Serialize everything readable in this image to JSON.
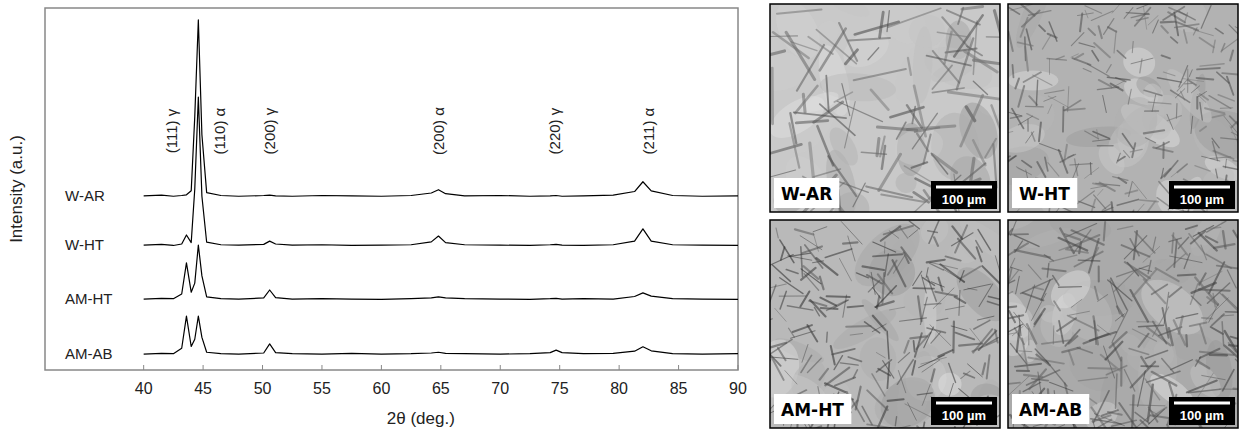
{
  "chart_data": {
    "type": "line",
    "x_label": "2θ (deg.)",
    "y_label": "Intensity (a.u.)",
    "xlim": [
      31.7,
      90
    ],
    "ylim": [
      0,
      100
    ],
    "xticks": [
      40,
      45,
      50,
      55,
      60,
      65,
      70,
      75,
      80,
      85,
      90
    ],
    "tick_labels": "x",
    "grid": false,
    "x": [
      40,
      41.5,
      42.5,
      43.2,
      43.6,
      44.0,
      44.3,
      44.6,
      44.9,
      45.3,
      46.5,
      48,
      50.1,
      50.6,
      51.1,
      52.5,
      55,
      57.5,
      60,
      62.5,
      64.2,
      64.8,
      65.4,
      67,
      70,
      72.5,
      74.2,
      74.7,
      75.2,
      77,
      79.5,
      81.3,
      82,
      82.7,
      84.5,
      87,
      90
    ],
    "series": [
      {
        "name": "W-AR",
        "color": "#000000",
        "values": [
          48.1,
          48.3,
          48.0,
          48.2,
          48.4,
          49.5,
          70,
          96.7,
          65,
          49.0,
          48.2,
          48.0,
          48.2,
          48.3,
          48.1,
          48.0,
          48.2,
          48.1,
          48.0,
          48.2,
          48.9,
          49.8,
          48.7,
          48.1,
          48.2,
          48.0,
          48.1,
          48.2,
          48.0,
          48.1,
          48.3,
          49.3,
          52.0,
          49.5,
          48.2,
          48.0,
          48.1
        ]
      },
      {
        "name": "W-HT",
        "color": "#000000",
        "values": [
          34.5,
          34.7,
          34.4,
          34.8,
          37.3,
          35.2,
          50,
          75.4,
          48,
          35.3,
          34.6,
          34.5,
          34.7,
          35.6,
          34.8,
          34.5,
          34.6,
          34.4,
          34.5,
          34.6,
          35.4,
          37.0,
          35.2,
          34.6,
          34.5,
          34.4,
          34.6,
          34.7,
          34.5,
          34.4,
          34.6,
          35.6,
          39.0,
          35.6,
          34.6,
          34.5,
          34.4
        ]
      },
      {
        "name": "AM-HT",
        "color": "#000000",
        "values": [
          19.6,
          19.8,
          19.7,
          21,
          29.6,
          21.5,
          24,
          34.5,
          26,
          20.2,
          19.7,
          19.6,
          19.9,
          22.1,
          20.0,
          19.6,
          19.7,
          19.6,
          19.5,
          19.7,
          19.9,
          20.2,
          19.9,
          19.7,
          19.6,
          19.5,
          19.7,
          19.8,
          19.6,
          19.7,
          19.6,
          20.3,
          21.3,
          20.4,
          19.7,
          19.6,
          19.5
        ]
      },
      {
        "name": "AM-AB",
        "color": "#000000",
        "values": [
          4.4,
          4.6,
          4.5,
          6,
          14.9,
          6.5,
          8.5,
          14.9,
          9,
          4.9,
          4.5,
          4.4,
          4.7,
          7.2,
          4.8,
          4.5,
          4.4,
          4.6,
          4.4,
          4.5,
          4.7,
          4.9,
          4.6,
          4.5,
          4.4,
          4.5,
          4.8,
          5.5,
          4.8,
          4.5,
          4.6,
          5.2,
          6.4,
          5.3,
          4.5,
          4.4,
          4.5
        ]
      }
    ],
    "annotations": [
      {
        "text": "(111) γ",
        "x": 42.3,
        "y": 66
      },
      {
        "text": "(110) α",
        "x": 46.4,
        "y": 66
      },
      {
        "text": "(200) γ",
        "x": 50.6,
        "y": 66
      },
      {
        "text": "(200) α",
        "x": 64.8,
        "y": 66
      },
      {
        "text": "(220) γ",
        "x": 74.6,
        "y": 66
      },
      {
        "text": "(211) α",
        "x": 82.5,
        "y": 66
      }
    ]
  },
  "micrographs": [
    {
      "label": "W-AR",
      "scale_bar": "100 µm"
    },
    {
      "label": "W-HT",
      "scale_bar": "100 µm"
    },
    {
      "label": "AM-HT",
      "scale_bar": "100 µm"
    },
    {
      "label": "AM-AB",
      "scale_bar": "100 µm"
    }
  ]
}
